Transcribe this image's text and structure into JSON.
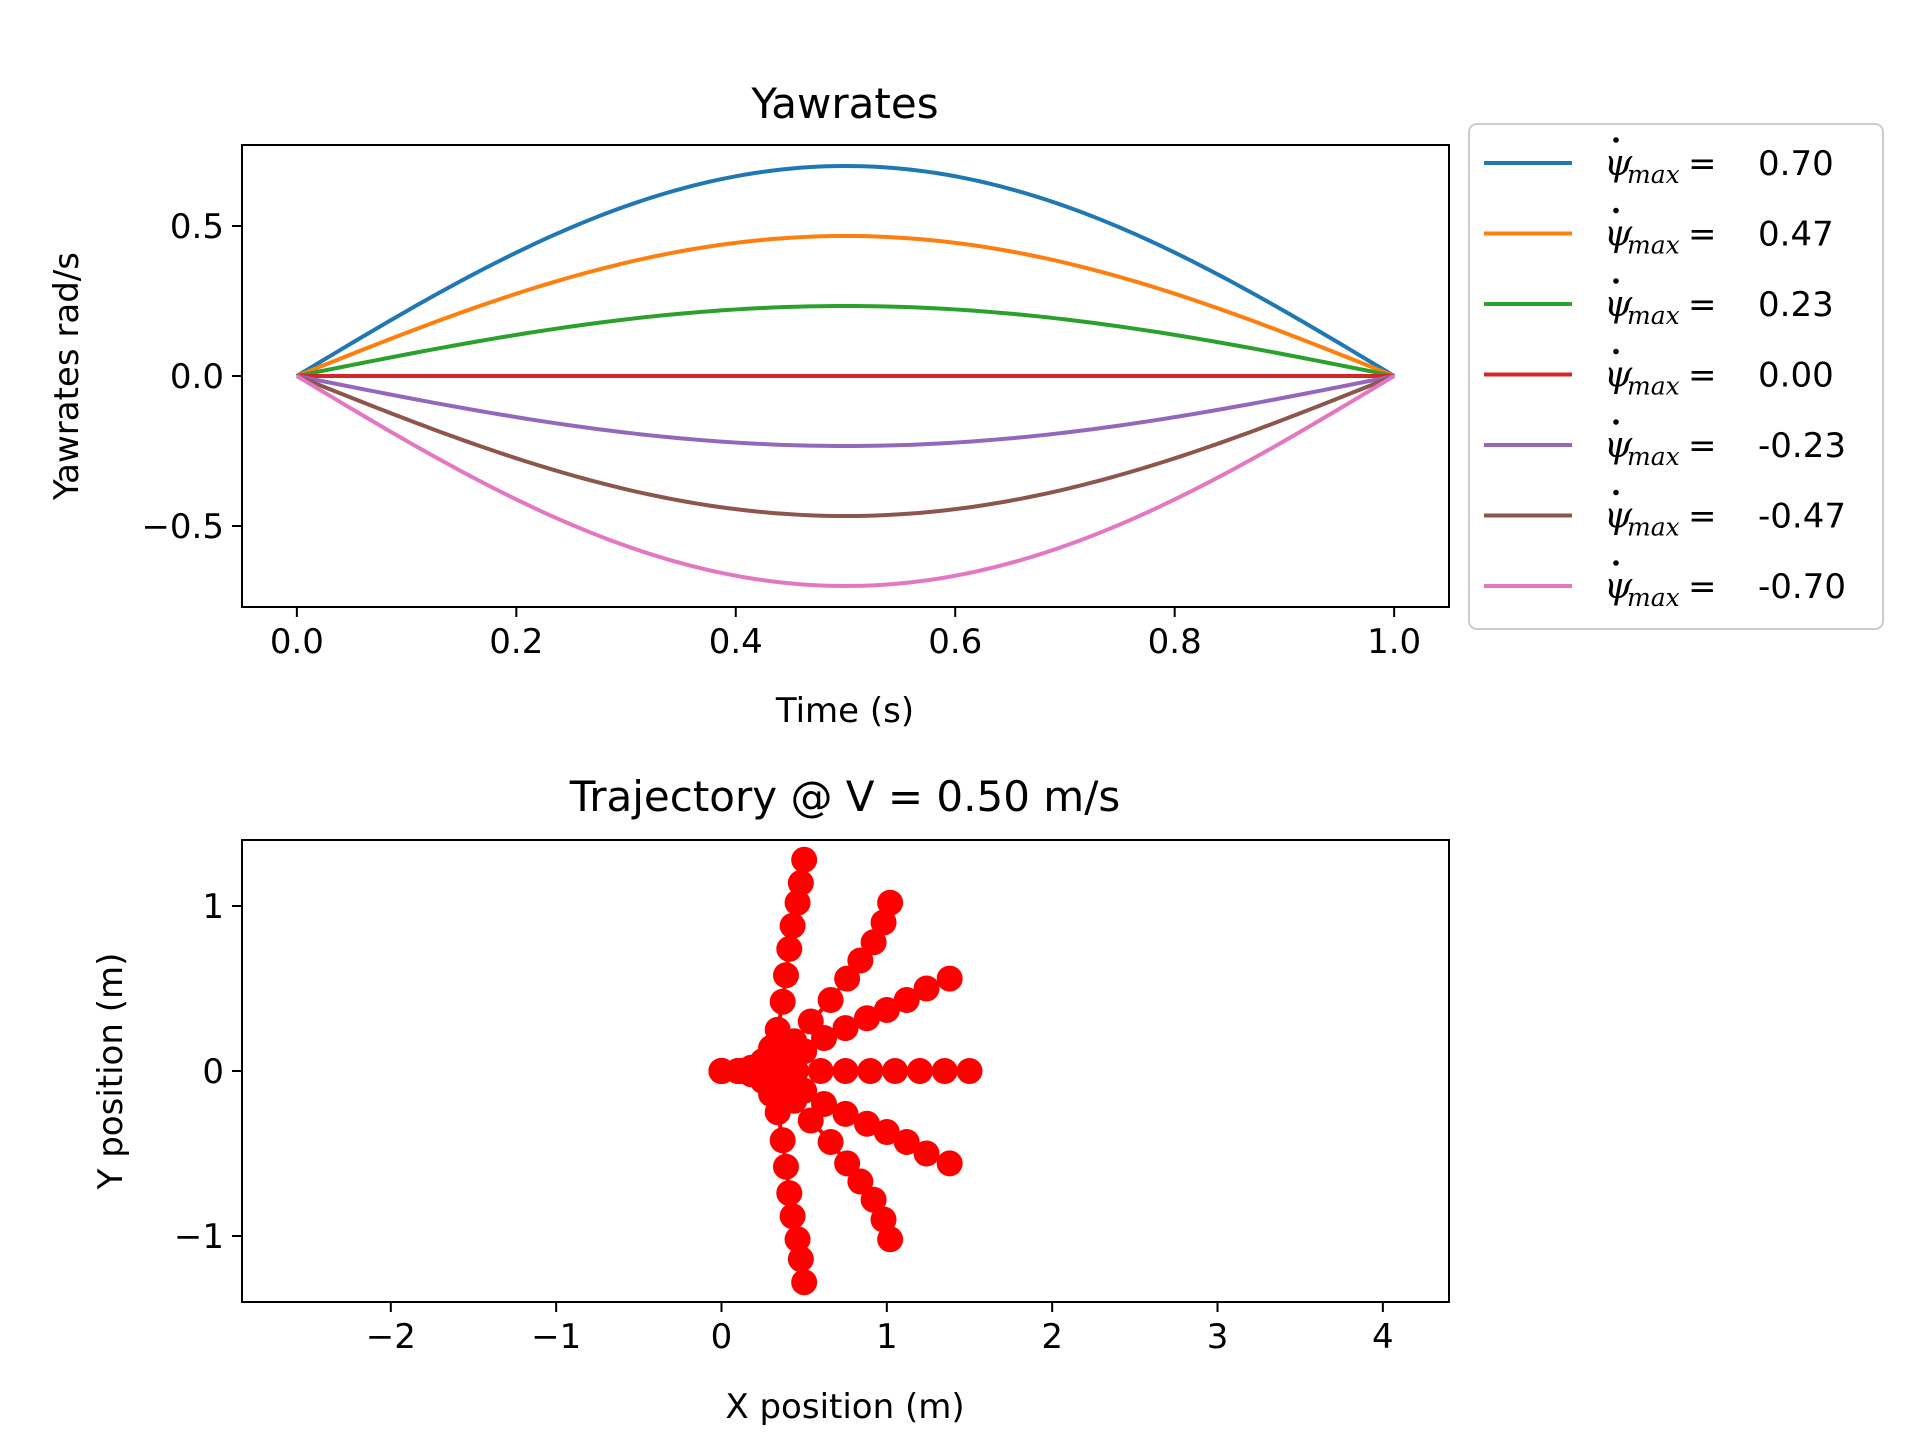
{
  "colors": {
    "series": [
      "#1f77b4",
      "#ff7f0e",
      "#2ca02c",
      "#d62728",
      "#9467bd",
      "#8c564b",
      "#e377c2"
    ],
    "trajectory": "#ff0000"
  },
  "chart_data": [
    {
      "type": "line",
      "title": "Yawrates",
      "xlabel": "Time (s)",
      "ylabel": "Yawrates rad/s",
      "xlim": [
        -0.05,
        1.05
      ],
      "ylim": [
        -0.77,
        0.77
      ],
      "xticks": [
        0.0,
        0.2,
        0.4,
        0.6,
        0.8,
        1.0
      ],
      "xtick_labels": [
        "0.0",
        "0.2",
        "0.4",
        "0.6",
        "0.8",
        "1.0"
      ],
      "yticks": [
        -0.5,
        0.0,
        0.5
      ],
      "ytick_labels": [
        "−0.5",
        "0.0",
        "0.5"
      ],
      "curve_shape": "sin(pi*t)",
      "x_range": [
        0,
        1
      ],
      "grid": false,
      "legend_position": "outside-right",
      "legend_symbol": "ψ",
      "legend_subscript": "max",
      "legend_equals": "=",
      "series": [
        {
          "name": "0.70",
          "amplitude": 0.7
        },
        {
          "name": "0.47",
          "amplitude": 0.4667
        },
        {
          "name": "0.23",
          "amplitude": 0.2333
        },
        {
          "name": "0.00",
          "amplitude": 0.0
        },
        {
          "name": "-0.23",
          "amplitude": -0.2333
        },
        {
          "name": "-0.47",
          "amplitude": -0.4667
        },
        {
          "name": "-0.70",
          "amplitude": -0.7
        }
      ]
    },
    {
      "type": "scatter",
      "title": "Trajectory @ V = 0.50 m/s",
      "xlabel": "X position (m)",
      "ylabel": "Y position (m)",
      "xlim": [
        -2.9,
        4.4
      ],
      "ylim": [
        -1.4,
        1.4
      ],
      "xticks": [
        -2,
        -1,
        0,
        1,
        2,
        3,
        4
      ],
      "xtick_labels": [
        "−2",
        "−1",
        "0",
        "1",
        "2",
        "3",
        "4"
      ],
      "yticks": [
        -1,
        0,
        1
      ],
      "ytick_labels": [
        "−1",
        "0",
        "1"
      ],
      "grid": false,
      "marker": "circle",
      "trajectories": [
        {
          "points": [
            [
              0.0,
              0.0
            ],
            [
              0.1,
              0.0
            ],
            [
              0.18,
              0.02
            ],
            [
              0.25,
              0.06
            ],
            [
              0.3,
              0.14
            ],
            [
              0.34,
              0.25
            ],
            [
              0.37,
              0.42
            ],
            [
              0.39,
              0.58
            ],
            [
              0.41,
              0.74
            ],
            [
              0.43,
              0.88
            ],
            [
              0.46,
              1.02
            ],
            [
              0.48,
              1.14
            ],
            [
              0.5,
              1.28
            ]
          ]
        },
        {
          "points": [
            [
              0.0,
              0.0
            ],
            [
              0.12,
              0.0
            ],
            [
              0.24,
              0.03
            ],
            [
              0.34,
              0.09
            ],
            [
              0.44,
              0.18
            ],
            [
              0.54,
              0.3
            ],
            [
              0.66,
              0.43
            ],
            [
              0.76,
              0.56
            ],
            [
              0.84,
              0.67
            ],
            [
              0.92,
              0.78
            ],
            [
              0.98,
              0.9
            ],
            [
              1.02,
              1.02
            ]
          ]
        },
        {
          "points": [
            [
              0.0,
              0.0
            ],
            [
              0.12,
              0.0
            ],
            [
              0.25,
              0.02
            ],
            [
              0.37,
              0.06
            ],
            [
              0.5,
              0.12
            ],
            [
              0.62,
              0.2
            ],
            [
              0.75,
              0.26
            ],
            [
              0.88,
              0.32
            ],
            [
              1.0,
              0.37
            ],
            [
              1.12,
              0.43
            ],
            [
              1.24,
              0.5
            ],
            [
              1.38,
              0.56
            ]
          ]
        },
        {
          "points": [
            [
              0.0,
              0.0
            ],
            [
              0.1,
              0.0
            ],
            [
              0.2,
              0.0
            ],
            [
              0.3,
              0.0
            ],
            [
              0.45,
              0.0
            ],
            [
              0.6,
              0.0
            ],
            [
              0.75,
              0.0
            ],
            [
              0.9,
              0.0
            ],
            [
              1.05,
              0.0
            ],
            [
              1.2,
              0.0
            ],
            [
              1.35,
              0.0
            ],
            [
              1.5,
              0.0
            ]
          ]
        },
        {
          "points": [
            [
              0.0,
              0.0
            ],
            [
              0.12,
              0.0
            ],
            [
              0.25,
              -0.02
            ],
            [
              0.37,
              -0.06
            ],
            [
              0.5,
              -0.12
            ],
            [
              0.62,
              -0.2
            ],
            [
              0.75,
              -0.26
            ],
            [
              0.88,
              -0.32
            ],
            [
              1.0,
              -0.37
            ],
            [
              1.12,
              -0.43
            ],
            [
              1.24,
              -0.5
            ],
            [
              1.38,
              -0.56
            ]
          ]
        },
        {
          "points": [
            [
              0.0,
              0.0
            ],
            [
              0.12,
              0.0
            ],
            [
              0.24,
              -0.03
            ],
            [
              0.34,
              -0.09
            ],
            [
              0.44,
              -0.18
            ],
            [
              0.54,
              -0.3
            ],
            [
              0.66,
              -0.43
            ],
            [
              0.76,
              -0.56
            ],
            [
              0.84,
              -0.67
            ],
            [
              0.92,
              -0.78
            ],
            [
              0.98,
              -0.9
            ],
            [
              1.02,
              -1.02
            ]
          ]
        },
        {
          "points": [
            [
              0.0,
              0.0
            ],
            [
              0.1,
              0.0
            ],
            [
              0.18,
              -0.02
            ],
            [
              0.25,
              -0.06
            ],
            [
              0.3,
              -0.14
            ],
            [
              0.34,
              -0.25
            ],
            [
              0.37,
              -0.42
            ],
            [
              0.39,
              -0.58
            ],
            [
              0.41,
              -0.74
            ],
            [
              0.43,
              -0.88
            ],
            [
              0.46,
              -1.02
            ],
            [
              0.48,
              -1.14
            ],
            [
              0.5,
              -1.28
            ]
          ]
        }
      ]
    }
  ]
}
